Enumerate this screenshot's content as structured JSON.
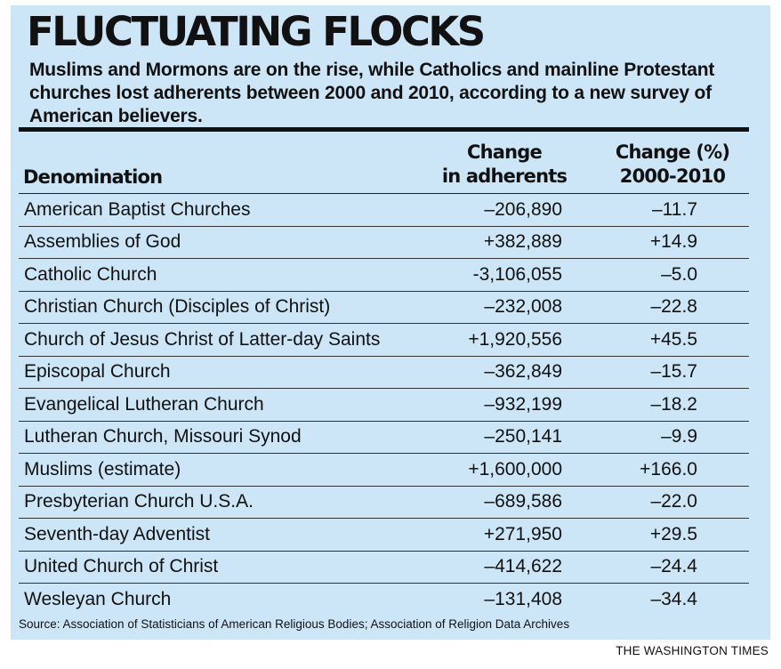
{
  "chart_data": {
    "type": "table",
    "title": "FLUCTUATING FLOCKS",
    "subtitle": "Muslims and Mormons are on the rise, while Catholics and mainline Protestant churches lost adherents between 2000 and 2010, according to a new survey of American believers.",
    "columns": {
      "name": "Denomination",
      "change_line1": "Change",
      "change_line2": "in adherents",
      "pct_line1": "Change (%)",
      "pct_line2": "2000-2010"
    },
    "rows": [
      {
        "name": "American Baptist Churches",
        "change": "–206,890",
        "pct": "–11.7"
      },
      {
        "name": "Assemblies of God",
        "change": "+382,889",
        "pct": "+14.9"
      },
      {
        "name": "Catholic Church",
        "change": "-3,106,055",
        "pct": "–5.0"
      },
      {
        "name": "Christian Church (Disciples of Christ)",
        "change": "–232,008",
        "pct": "–22.8"
      },
      {
        "name": "Church of Jesus Christ of Latter-day Saints",
        "change": "+1,920,556",
        "pct": "+45.5"
      },
      {
        "name": "Episcopal Church",
        "change": "–362,849",
        "pct": "–15.7"
      },
      {
        "name": "Evangelical Lutheran Church",
        "change": "–932,199",
        "pct": "–18.2"
      },
      {
        "name": "Lutheran Church, Missouri Synod",
        "change": "–250,141",
        "pct": "–9.9"
      },
      {
        "name": "Muslims (estimate)",
        "change": "+1,600,000",
        "pct": "+166.0"
      },
      {
        "name": "Presbyterian Church U.S.A.",
        "change": "–689,586",
        "pct": "–22.0"
      },
      {
        "name": "Seventh-day Adventist",
        "change": "+271,950",
        "pct": "+29.5"
      },
      {
        "name": "United Church of Christ",
        "change": "–414,622",
        "pct": "–24.4"
      },
      {
        "name": "Wesleyan Church",
        "change": "–131,408",
        "pct": "–34.4"
      }
    ],
    "source": "Source: Association of Statisticians of American Religious Bodies; Association of Religion Data Archives",
    "credit": "THE WASHINGTON TIMES",
    "colors": {
      "background": "#cde6f7",
      "text": "#111111",
      "page": "#ffffff"
    }
  }
}
